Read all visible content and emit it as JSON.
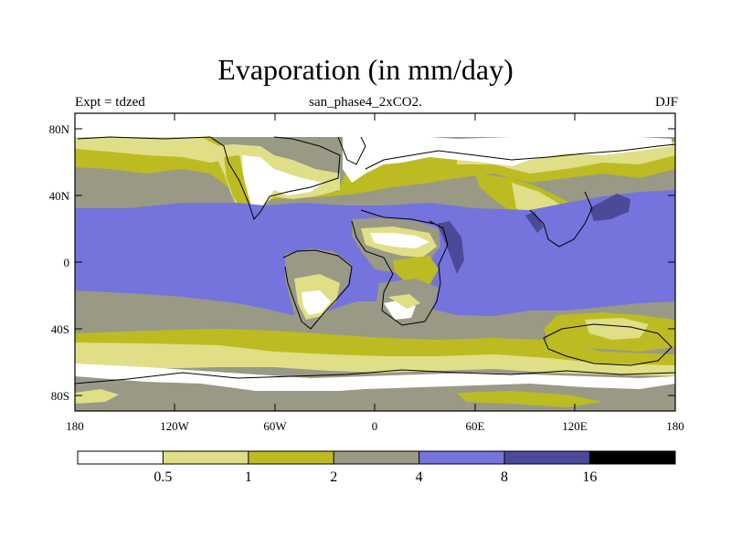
{
  "title": "Evaporation (in mm/day)",
  "subtitle": "san_phase4_2xCO2.",
  "experiment_label": "Expt = tdzed",
  "season": "DJF",
  "axes": {
    "y_ticks": [
      "80N",
      "40N",
      "0",
      "40S",
      "80S"
    ],
    "x_ticks": [
      "180",
      "120W",
      "60W",
      "0",
      "60E",
      "120E",
      "180"
    ]
  },
  "colorbar": {
    "labels": [
      "0.5",
      "1",
      "2",
      "4",
      "8",
      "16"
    ],
    "colors": [
      "#ffffff",
      "#e0df88",
      "#bcbc22",
      "#999986",
      "#7474dc",
      "#4a4a98",
      "#000000"
    ]
  },
  "map_colors": {
    "white": "#ffffff",
    "light_yellow": "#e0df88",
    "olive": "#bcbc22",
    "gray": "#999986",
    "blue": "#7474dc",
    "dark_blue": "#4a4a98"
  }
}
